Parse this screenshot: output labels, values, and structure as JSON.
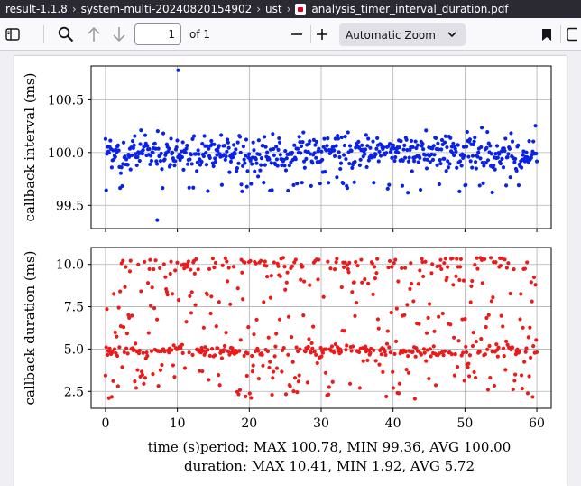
{
  "titlebar": {
    "breadcrumbs": [
      "result-1.1.8",
      "system-multi-20240820154902",
      "ust"
    ],
    "filename": "analysis_timer_interval_duration.pdf"
  },
  "toolbar": {
    "page_number": "1",
    "page_count": "of 1",
    "zoom": "Automatic Zoom"
  },
  "icons": [
    "sidebar-toggle-icon",
    "search-icon",
    "previous-page-icon",
    "next-page-icon",
    "zoom-out-icon",
    "zoom-in-icon",
    "chevron-down-icon",
    "bookmark-icon",
    "pdf-file-icon"
  ],
  "colors": {
    "interval": "#0a22e6",
    "duration": "#ea1b1b"
  },
  "chart_data": [
    {
      "type": "scatter",
      "ylabel": "callback interval (ms)",
      "xlim": [
        -2,
        62
      ],
      "ylim": [
        99.28,
        100.82
      ],
      "yticks": [
        99.5,
        100.0,
        100.5
      ],
      "ytick_labels": [
        "99.5",
        "100.0",
        "100.5"
      ],
      "xticks": [
        0,
        10,
        20,
        30,
        40,
        50,
        60
      ],
      "grid": true,
      "color": "#0a22e6",
      "y_max": 100.78,
      "y_min": 99.36
    },
    {
      "type": "scatter",
      "ylabel": "callback duration (ms)",
      "xlabel": "time (s)",
      "xlim": [
        -2,
        62
      ],
      "ylim": [
        1.5,
        11.0
      ],
      "yticks": [
        2.5,
        5.0,
        7.5,
        10.0
      ],
      "ytick_labels": [
        "2.5",
        "5.0",
        "7.5",
        "10.0"
      ],
      "xticks": [
        0,
        10,
        20,
        30,
        40,
        50,
        60
      ],
      "xtick_labels": [
        "0",
        "10",
        "20",
        "30",
        "40",
        "50",
        "60"
      ],
      "grid": true,
      "color": "#ea1b1b",
      "y_max": 10.41,
      "y_min": 1.92
    }
  ],
  "caption": {
    "line1": "time (s)period: MAX 100.78, MIN 99.36, AVG 100.00",
    "line2": "duration: MAX 10.41, MIN 1.92, AVG 5.72"
  }
}
